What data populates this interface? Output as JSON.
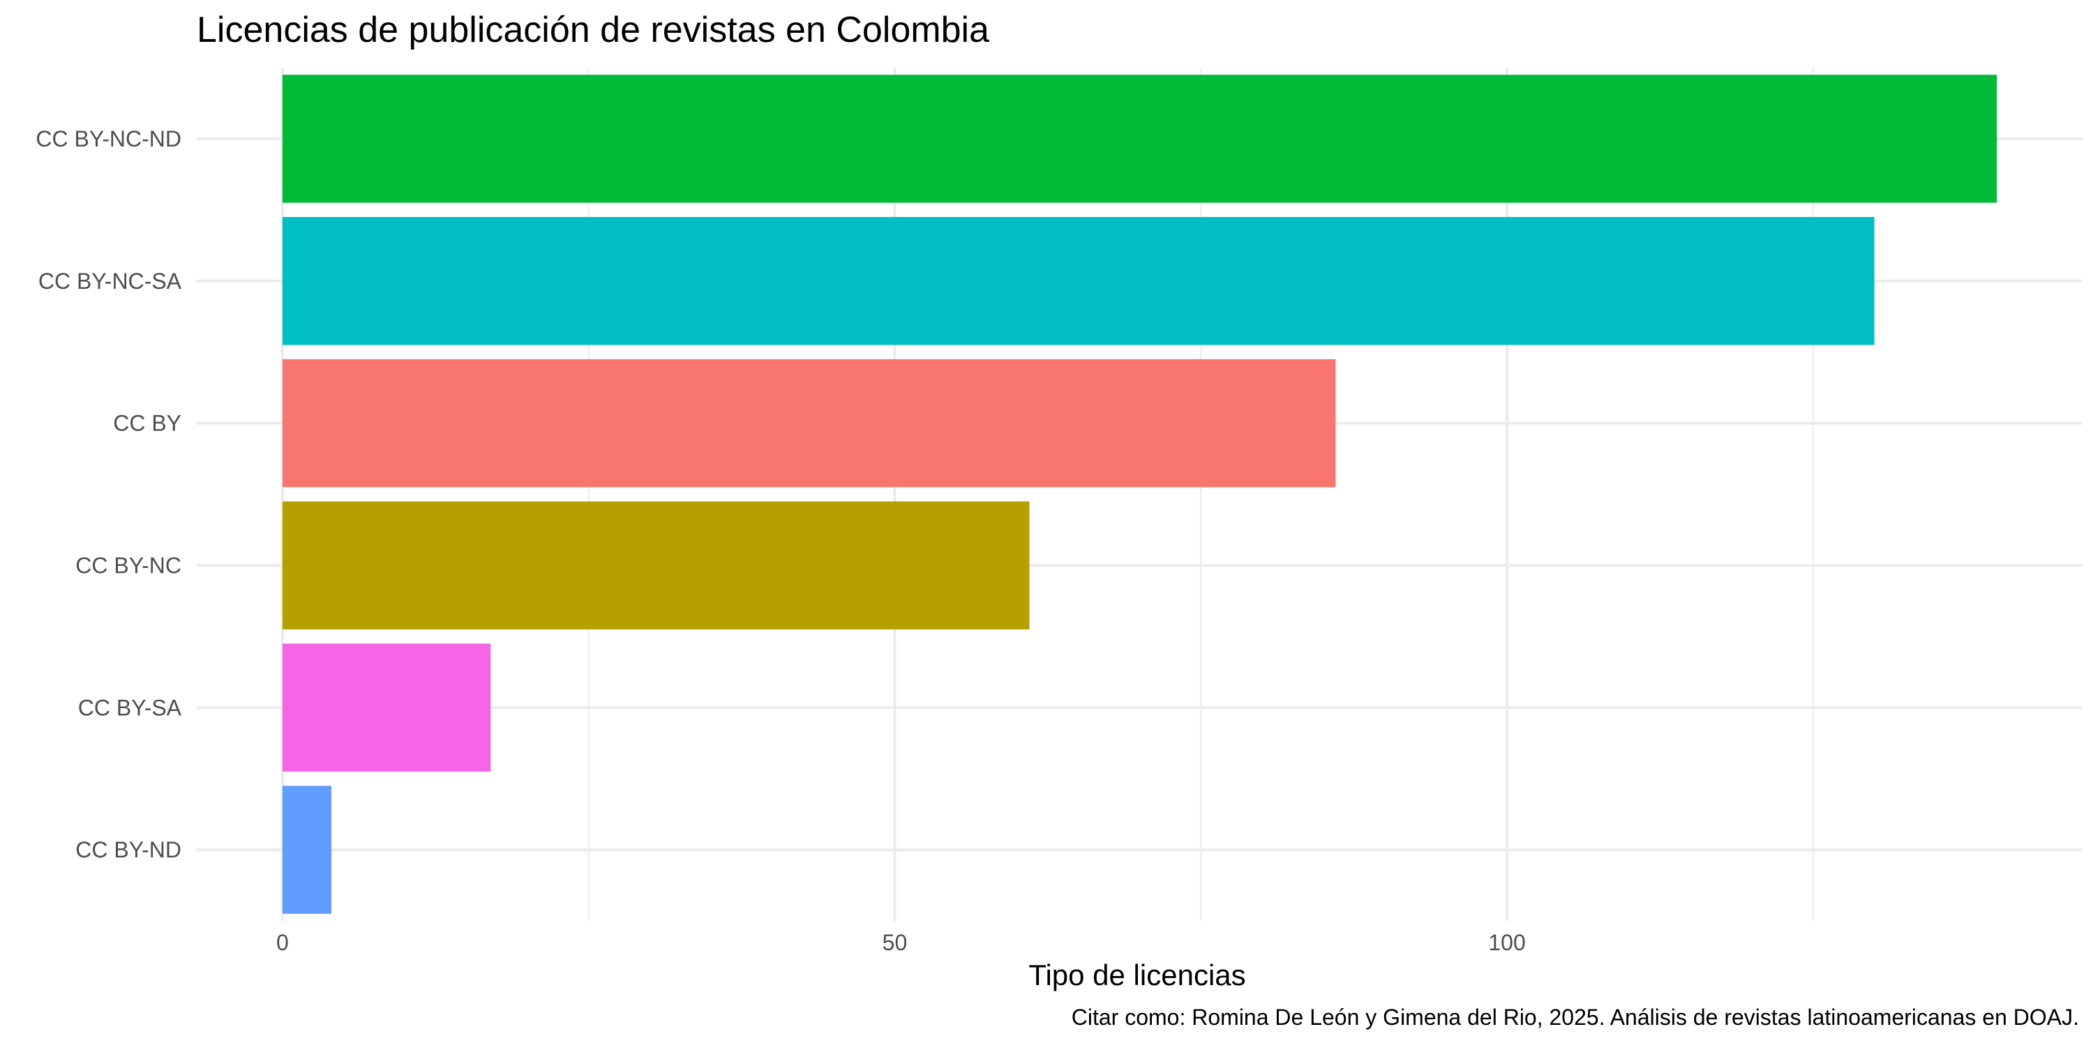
{
  "chart_data": {
    "type": "bar",
    "orientation": "horizontal",
    "title": "Licencias de publicación de revistas en Colombia",
    "xlabel": "Tipo de licencias",
    "ylabel": "",
    "caption": "Citar como: Romina De León y Gimena del Rio, 2025. Análisis de revistas latinoamericanas en DOAJ.",
    "categories": [
      "CC BY-NC-ND",
      "CC BY-NC-SA",
      "CC BY",
      "CC BY-NC",
      "CC BY-SA",
      "CC BY-ND"
    ],
    "values": [
      140,
      130,
      86,
      61,
      17,
      4
    ],
    "colors": [
      "#00BA38",
      "#00BFC4",
      "#F8766D",
      "#B79F00",
      "#F564E3",
      "#619CFF"
    ],
    "xlim": [
      -7,
      147
    ],
    "x_ticks": [
      0,
      50,
      100
    ],
    "x_minor_ticks": [
      25,
      75,
      125
    ],
    "grid": true,
    "legend": "none"
  }
}
